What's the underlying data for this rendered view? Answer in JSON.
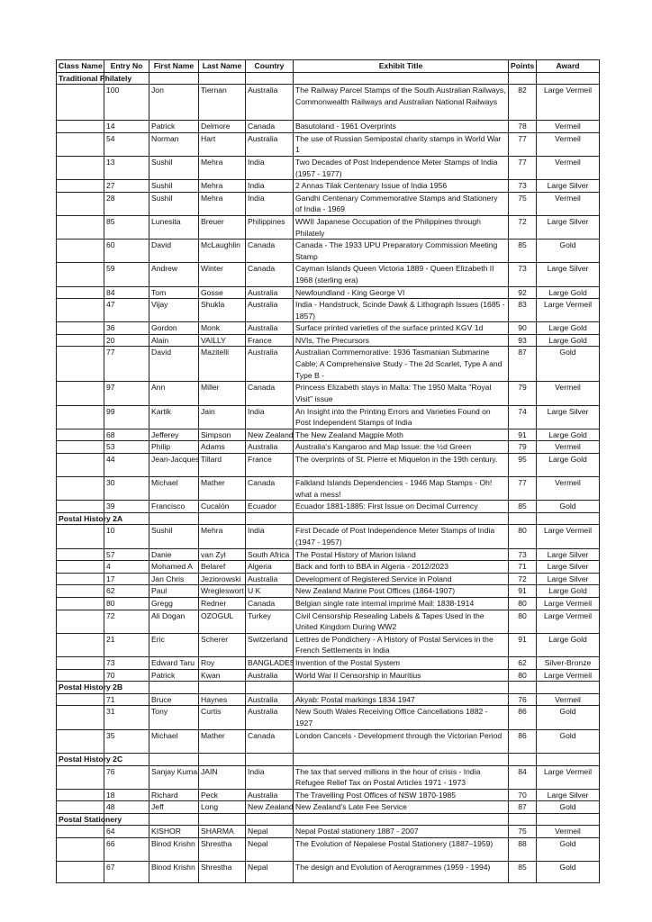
{
  "headers": [
    "Class Name",
    "Entry No",
    "First Name",
    "Last Name",
    "Country",
    "Exhibit Title",
    "Points",
    "Award"
  ],
  "sections": [
    {
      "class_name": "Traditional Philately",
      "entries": [
        [
          "100",
          "Jon",
          "Tiernan",
          "Australia",
          "The Railway Parcel Stamps of the South Australian Railways, Commonwealth Railways and Australian National Railways",
          "82",
          "Large Vermeil"
        ],
        [
          "14",
          "Patrick",
          "Delmore",
          "Canada",
          "Basutoland - 1961 Overprints",
          "78",
          "Vermeil"
        ],
        [
          "54",
          "Norman",
          "Hart",
          "Australia",
          "The use of Russian Semipostal charity stamps in World War 1",
          "77",
          "Vermeil"
        ],
        [
          "13",
          "Sushil",
          "Mehra",
          "India",
          "Two Decades of Post Independence Meter Stamps of India (1957 - 1977)",
          "77",
          "Vermeil"
        ],
        [
          "27",
          "Sushil",
          "Mehra",
          "India",
          "2 Annas Tilak Centenary Issue of India 1956",
          "73",
          "Large Silver"
        ],
        [
          "28",
          "Sushil",
          "Mehra",
          "India",
          "Gandhi Centenary Commemorative Stamps and Stationery of India - 1969",
          "75",
          "Vermeil"
        ],
        [
          "85",
          "Lunesita",
          "Breuer",
          "Philippines",
          "WWII Japanese Occupation of the Philippines through Philately",
          "72",
          "Large Silver"
        ],
        [
          "60",
          "David",
          "McLaughlin",
          "Canada",
          "Canada - The 1933 UPU Preparatory Commission Meeting Stamp",
          "85",
          "Gold"
        ],
        [
          "59",
          "Andrew",
          "Winter",
          "Canada",
          "Cayman Islands Queen Victoria 1889 - Queen Elizabeth II 1968 (sterling era)",
          "73",
          "Large Silver"
        ],
        [
          "84",
          "Tom",
          "Gosse",
          "Australia",
          "Newfoundland - King George VI",
          "92",
          "Large Gold"
        ],
        [
          "47",
          "Vijay",
          "Shukla",
          "Australia",
          "India - Handstruck, Scinde Dawk & Lithograph Issues (1685 - 1857)",
          "83",
          "Large Vermeil"
        ],
        [
          "36",
          "Gordon",
          "Monk",
          "Australia",
          "Surface printed varieties of the surface printed KGV 1d",
          "90",
          "Large Gold"
        ],
        [
          "20",
          "Alain",
          "VAILLY",
          "France",
          "NVIs, The Precursors",
          "93",
          "Large Gold"
        ],
        [
          "77",
          "David",
          "Mazitelli",
          "Australia",
          "Australian Commemorative: 1936 Tasmanian Submarine Cable; A Comprehensive Study - The 2d Scarlet, Type A and Type B -",
          "87",
          "Gold"
        ],
        [
          "97",
          "Ann",
          "Miller",
          "Canada",
          "Princess Elizabeth stays in Malta: The 1950 Malta \"Royal Visit\" issue",
          "79",
          "Vermeil"
        ],
        [
          "99",
          "Kartik",
          "Jain",
          "India",
          "An Insight into the Printing Errors and Varieties Found on Post Independent Stamps of India",
          "74",
          "Large Silver"
        ],
        [
          "68",
          "Jefferey",
          "Simpson",
          "New Zealand",
          "The New Zealand Magpie Moth",
          "91",
          "Large Gold"
        ],
        [
          "53",
          "Philip",
          "Adams",
          "Australia",
          "Australia's Kangaroo and Map Issue: the ½d Green",
          "79",
          "Vermeil"
        ],
        [
          "44",
          "Jean-Jacques",
          "Tillard",
          "France",
          "The overprints of St. Pierre et Miquelon in the 19th century.",
          "95",
          "Large Gold"
        ],
        [
          "30",
          "Michael",
          "Mather",
          "Canada",
          "Falkland Islands Dependencies - 1946 Map Stamps - Oh! what a mess!",
          "77",
          "Vermeil"
        ],
        [
          "39",
          "Francisco",
          "Cucalón",
          "Ecuador",
          "Ecuador 1881-1885: First Issue on Decimal Currency",
          "85",
          "Gold"
        ]
      ]
    },
    {
      "class_name": "Postal History 2A",
      "entries": [
        [
          "10",
          "Sushil",
          "Mehra",
          "India",
          "First Decade of Post Independence Meter Stamps of India (1947 - 1957)",
          "80",
          "Large Vermeil"
        ],
        [
          "57",
          "Danie",
          "van Zyl",
          "South Africa",
          "The Postal History of Marion Island",
          "73",
          "Large Silver"
        ],
        [
          "4",
          "Mohamed A",
          "Belaref",
          "Algeria",
          "Back and forth to BBA in Algeria - 2012/2023",
          "71",
          "Large Silver"
        ],
        [
          "17",
          "Jan Chris",
          "Jeziorowski",
          "Australia",
          "Development of Registered Service in Poland",
          "72",
          "Large Silver"
        ],
        [
          "62",
          "Paul",
          "Wregleswort",
          "U K",
          "New Zealand Marine Post Offices (1864-1907)",
          "91",
          "Large Gold"
        ],
        [
          "80",
          "Gregg",
          "Redner",
          "Canada",
          "Belgian single rate internal imprimé Mail: 1838-1914",
          "80",
          "Large Vermeil"
        ],
        [
          "72",
          "Ali Dogan",
          "OZOGUL",
          "Turkey",
          "Civil Censorship Resealing Labels & Tapes Used in the United Kingdom During WW2",
          "80",
          "Large Vermeil"
        ],
        [
          "21",
          "Eric",
          "Scherer",
          "Switzerland",
          "Lettres de Pondichery - A History of Postal Services in the French Settlements in India",
          "91",
          "Large Gold"
        ],
        [
          "73",
          "Edward Taru",
          "Roy",
          "BANGLADES",
          "Invention of the Postal System",
          "62",
          "Silver-Bronze"
        ],
        [
          "70",
          "Patrick",
          "Kwan",
          "Australia",
          "World War II Censorship in Mauritius",
          "80",
          "Large Vermeil"
        ]
      ]
    },
    {
      "class_name": "Postal History 2B",
      "entries": [
        [
          "71",
          "Bruce",
          "Haynes",
          "Australia",
          "Akyab: Postal markings 1834 1947",
          "76",
          "Vermeil"
        ],
        [
          "31",
          "Tony",
          "Curtis",
          "Australia",
          "New South Wales Receiving Office Cancellations 1882 - 1927",
          "86",
          "Gold"
        ],
        [
          "35",
          "Michael",
          "Mather",
          "Canada",
          "London Cancels - Development through the Victorian Period",
          "86",
          "Gold"
        ]
      ]
    },
    {
      "class_name": "Postal History 2C",
      "entries": [
        [
          "76",
          "Sanjay Kuma",
          "JAIN",
          "India",
          "The tax that served millions in the hour of crisis - India Refugee Relief Tax on Postal Articles 1971 - 1973",
          "84",
          "Large Vermeil"
        ],
        [
          "18",
          "Richard",
          "Peck",
          "Australia",
          "The Travelling Post Offices of NSW 1870-1985",
          "70",
          "Large Silver"
        ],
        [
          "48",
          "Jeff",
          "Long",
          "New Zealand",
          "New Zealand's Late Fee Service",
          "87",
          "Gold"
        ]
      ]
    },
    {
      "class_name": "Postal Stationery",
      "entries": [
        [
          "64",
          "KISHOR",
          "SHARMA",
          "Nepal",
          "Nepal Postal stationery 1887 - 2007",
          "75",
          "Vermeil"
        ],
        [
          "66",
          "Binod Krishn",
          "Shrestha",
          "Nepal",
          "The Evolution of Nepalese Postal Stationery (1887–1959)",
          "88",
          "Gold"
        ],
        [
          "67",
          "Binod Krishn",
          "Shrestha",
          "Nepal",
          "The design and Evolution of Aerogrammes (1959 - 1994)",
          "85",
          "Gold"
        ]
      ]
    }
  ]
}
